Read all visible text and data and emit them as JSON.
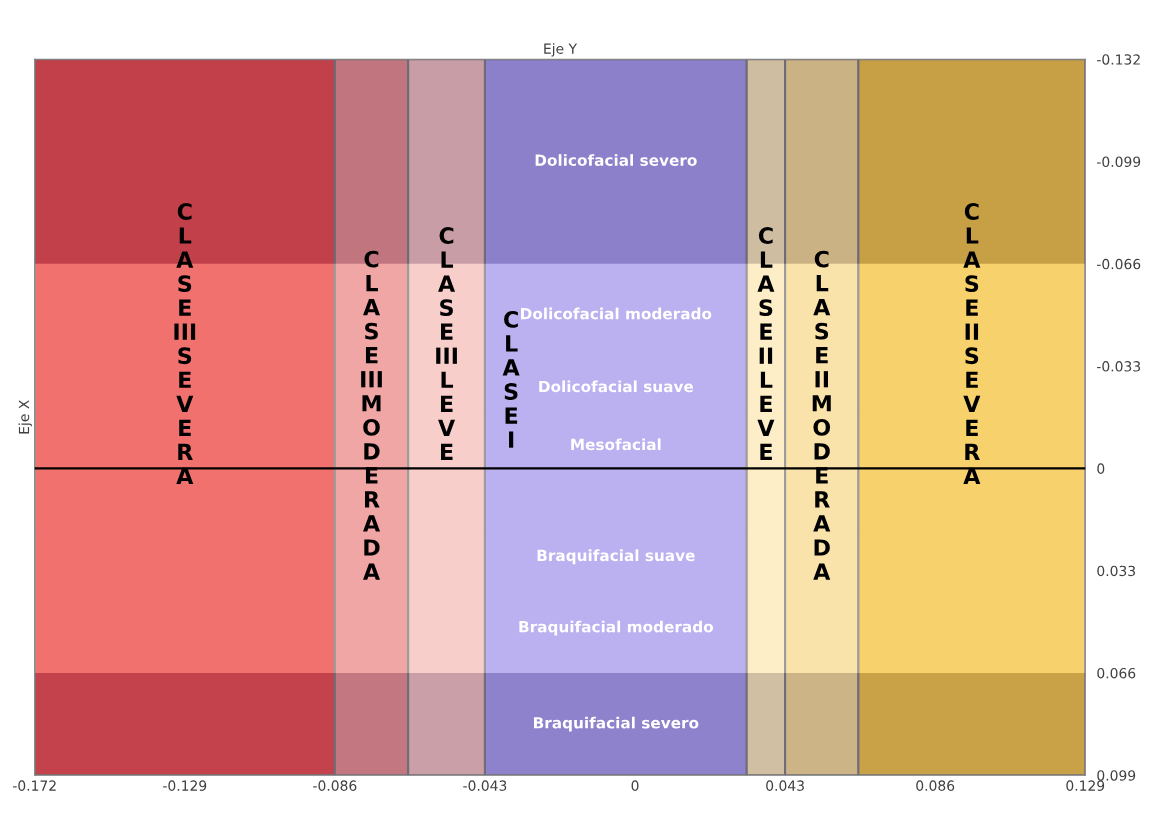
{
  "chart_data": {
    "type": "scatter",
    "title": "Eje Y",
    "ylabel": "Eje X",
    "xlim": [
      -0.172,
      0.129
    ],
    "xticks": [
      -0.172,
      -0.129,
      -0.086,
      -0.043,
      0,
      0.043,
      0.086,
      0.129
    ],
    "ylim": [
      0.099,
      -0.132
    ],
    "yticks": [
      -0.132,
      -0.099,
      -0.066,
      -0.033,
      0,
      0.033,
      0.066,
      0.099
    ],
    "bands": [
      {
        "axis": "x",
        "from": -0.172,
        "to": -0.086,
        "label": "CLASE III SEVERA",
        "color": "#ee4a47"
      },
      {
        "axis": "x",
        "from": -0.086,
        "to": -0.065,
        "label": "CLASE III MODERADA",
        "color": "#ec8e8c"
      },
      {
        "axis": "x",
        "from": -0.065,
        "to": -0.043,
        "label": "CLASE III LEVE",
        "color": "#f7c0bd"
      },
      {
        "axis": "x",
        "from": -0.043,
        "to": 0.032,
        "label": "CLASE I",
        "color": "#a99cec"
      },
      {
        "axis": "x",
        "from": 0.032,
        "to": 0.043,
        "label": "CLASE II LEVE",
        "color": "#fdeab8"
      },
      {
        "axis": "x",
        "from": 0.043,
        "to": 0.064,
        "label": "CLASE II MODERADA",
        "color": "#f9db93"
      },
      {
        "axis": "x",
        "from": 0.064,
        "to": 0.129,
        "label": "CLASE II SEVERA",
        "color": "#f4c443"
      },
      {
        "axis": "y",
        "from": -0.132,
        "to": -0.066,
        "label": "Dolicofacial severo",
        "color": "#2a2050"
      },
      {
        "axis": "y",
        "from": -0.066,
        "to": -0.033,
        "label": "Dolicofacial moderado",
        "color": "#ffffff"
      },
      {
        "axis": "y",
        "from": -0.033,
        "to": -0.019,
        "label": "Dolicofacial suave",
        "color": "#ffffff"
      },
      {
        "axis": "y",
        "from": -0.019,
        "to": 0.02,
        "label": "Mesofacial",
        "color": "#ffffff"
      },
      {
        "axis": "y",
        "from": 0.02,
        "to": 0.037,
        "label": "Braquifacial suave",
        "color": "#ffffff"
      },
      {
        "axis": "y",
        "from": 0.037,
        "to": 0.066,
        "label": "Braquifacial moderado",
        "color": "#ffffff"
      },
      {
        "axis": "y",
        "from": 0.066,
        "to": 0.099,
        "label": "Braquifacial severo",
        "color": "#30285a"
      }
    ],
    "ref_lines": [
      {
        "axis": "y",
        "value": 0,
        "color": "#000000",
        "line_style": "solid"
      }
    ]
  }
}
